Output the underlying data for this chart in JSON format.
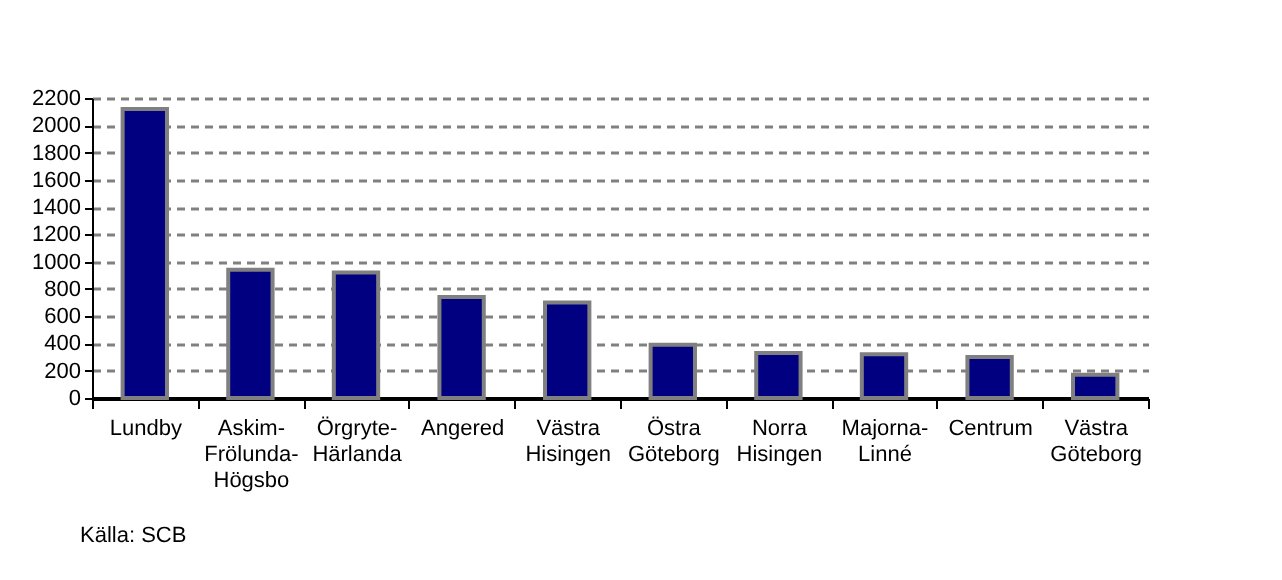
{
  "chart_data": {
    "type": "bar",
    "categories": [
      "Lundby",
      "Askim-Frölunda-Högsbo",
      "Örgryte-Härlanda",
      "Angered",
      "Västra Hisingen",
      "Östra Göteborg",
      "Norra Hisingen",
      "Majorna-Linné",
      "Centrum",
      "Västra Göteborg"
    ],
    "values": [
      2120,
      940,
      920,
      740,
      700,
      390,
      330,
      320,
      300,
      170
    ],
    "color": "#000080",
    "ylim": [
      0,
      2200
    ],
    "yticks": [
      0,
      200,
      400,
      600,
      800,
      1000,
      1200,
      1400,
      1600,
      1800,
      2000,
      2200
    ],
    "grid": "y",
    "legend": false,
    "annotations": [
      "Källa: SCB"
    ]
  }
}
